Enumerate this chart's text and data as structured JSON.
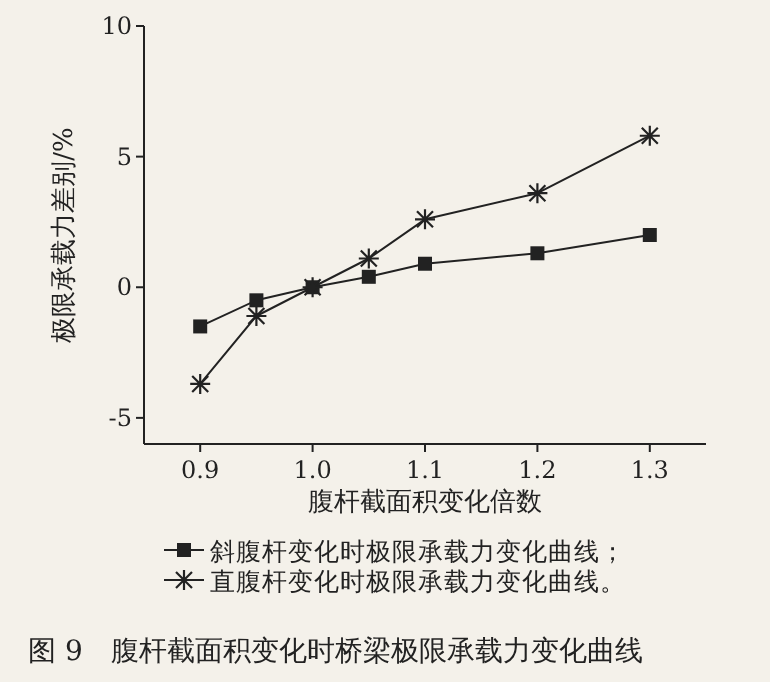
{
  "chart_data": {
    "type": "line",
    "title": "图 9　腹杆截面积变化时桥梁极限承载力变化曲线",
    "xlabel": "腹杆截面积变化倍数",
    "ylabel": "极限承载力差别/%",
    "x": [
      0.9,
      0.95,
      1.0,
      1.05,
      1.1,
      1.2,
      1.3
    ],
    "series": [
      {
        "name": "斜腹杆变化时极限承载力变化曲线；",
        "color": "#222222",
        "marker": "square",
        "values": [
          -1.5,
          -0.5,
          0,
          0.4,
          0.9,
          1.3,
          2.0
        ]
      },
      {
        "name": "直腹杆变化时极限承载力变化曲线。",
        "color": "#222222",
        "marker": "cross",
        "values": [
          -3.7,
          -1.1,
          0,
          1.1,
          2.6,
          3.6,
          5.8
        ]
      }
    ],
    "xlim": [
      0.85,
      1.35
    ],
    "ylim": [
      -6,
      10
    ],
    "xticks": [
      0.9,
      {
        "value": 1.0,
        "label": "1.0"
      },
      1.1,
      1.2,
      1.3
    ],
    "yticks": [
      -5,
      0,
      5,
      10
    ],
    "legend": "bottom",
    "grid": false,
    "line_style": "solid"
  }
}
